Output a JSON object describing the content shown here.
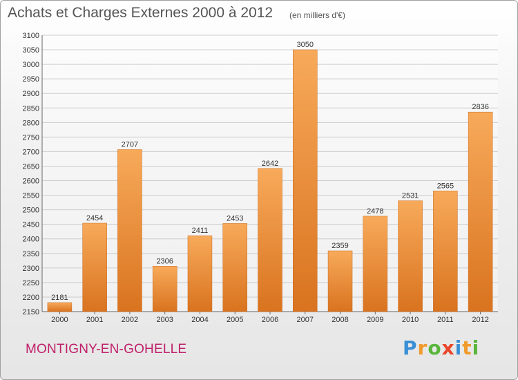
{
  "chart_data": {
    "type": "bar",
    "title": "Achats et Charges Externes 2000 à 2012",
    "unit_note": "(en milliers d'€)",
    "categories": [
      "2000",
      "2001",
      "2002",
      "2003",
      "2004",
      "2005",
      "2006",
      "2007",
      "2008",
      "2009",
      "2010",
      "2011",
      "2012"
    ],
    "values": [
      2181,
      2454,
      2707,
      2306,
      2411,
      2453,
      2642,
      3050,
      2359,
      2478,
      2531,
      2565,
      2836
    ],
    "ylim": [
      2150,
      3100
    ],
    "yticks": [
      2150,
      2200,
      2250,
      2300,
      2350,
      2400,
      2450,
      2500,
      2550,
      2600,
      2650,
      2700,
      2750,
      2800,
      2850,
      2900,
      2950,
      3000,
      3050,
      3100
    ],
    "grid": true,
    "bar_color": "#f0933a",
    "bar_color_light": "#f7aa5a",
    "bar_color_dark": "#d9731f"
  },
  "commune": "MONTIGNY-EN-GOHELLE",
  "logo": {
    "letters": [
      "P",
      "r",
      "o",
      "x",
      "i",
      "t",
      "i"
    ],
    "colors": [
      "#3a8fd6",
      "#f19a2c",
      "#59b63a",
      "#e8462a",
      "#3a8fd6",
      "#f19a2c",
      "#59b63a"
    ]
  }
}
